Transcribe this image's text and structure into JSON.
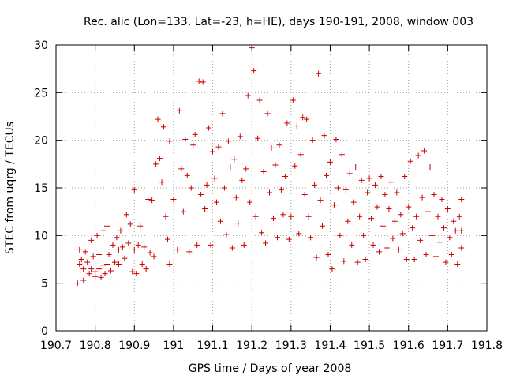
{
  "chart_data": {
    "type": "scatter",
    "title": "Rec. alic (Lon=133, Lat=-23, h=HE), days 190-191, 2008, window 003",
    "xlabel": "GPS time / Days of year 2008",
    "ylabel": "STEC from uqrg / TECUs",
    "xlim": [
      190.7,
      191.8
    ],
    "ylim": [
      0,
      30
    ],
    "xticks": [
      190.7,
      190.8,
      190.9,
      191.0,
      191.1,
      191.2,
      191.3,
      191.4,
      191.5,
      191.6,
      191.7,
      191.8
    ],
    "xtick_labels": [
      "190.7",
      "190.8",
      "190.9",
      "191",
      "191.1",
      "191.2",
      "191.3",
      "191.4",
      "191.5",
      "191.6",
      "191.7",
      "191.8"
    ],
    "yticks": [
      0,
      5,
      10,
      15,
      20,
      25,
      30
    ],
    "ytick_labels": [
      "0",
      "5",
      "10",
      "15",
      "20",
      "25",
      "30"
    ],
    "grid": true,
    "marker": "plus",
    "marker_color": "#cc0000",
    "series": [
      {
        "points": [
          [
            190.755,
            5.0
          ],
          [
            190.76,
            7.0
          ],
          [
            190.76,
            8.5
          ],
          [
            190.765,
            7.5
          ],
          [
            190.77,
            6.5
          ],
          [
            190.77,
            5.3
          ],
          [
            190.775,
            8.3
          ],
          [
            190.78,
            7.2
          ],
          [
            190.785,
            6.0
          ],
          [
            190.79,
            9.5
          ],
          [
            190.79,
            6.5
          ],
          [
            190.795,
            7.8
          ],
          [
            190.8,
            6.2
          ],
          [
            190.8,
            5.7
          ],
          [
            190.805,
            10.0
          ],
          [
            190.81,
            6.5
          ],
          [
            190.81,
            8.0
          ],
          [
            190.815,
            5.6
          ],
          [
            190.82,
            6.9
          ],
          [
            190.82,
            10.5
          ],
          [
            190.825,
            6.0
          ],
          [
            190.83,
            7.0
          ],
          [
            190.83,
            11.0
          ],
          [
            190.835,
            8.0
          ],
          [
            190.84,
            6.3
          ],
          [
            190.845,
            9.0
          ],
          [
            190.85,
            7.2
          ],
          [
            190.855,
            9.8
          ],
          [
            190.86,
            8.5
          ],
          [
            190.86,
            7.0
          ],
          [
            190.865,
            10.5
          ],
          [
            190.87,
            8.8
          ],
          [
            190.875,
            7.6
          ],
          [
            190.88,
            12.2
          ],
          [
            190.885,
            9.2
          ],
          [
            190.89,
            11.2
          ],
          [
            190.895,
            6.2
          ],
          [
            190.9,
            14.8
          ],
          [
            190.9,
            8.5
          ],
          [
            190.905,
            6.0
          ],
          [
            190.91,
            9.0
          ],
          [
            190.915,
            11.0
          ],
          [
            190.92,
            7.0
          ],
          [
            190.925,
            8.8
          ],
          [
            190.93,
            6.5
          ],
          [
            190.935,
            13.8
          ],
          [
            190.94,
            8.2
          ],
          [
            190.945,
            13.7
          ],
          [
            190.95,
            7.8
          ],
          [
            190.955,
            17.5
          ],
          [
            190.96,
            22.2
          ],
          [
            190.965,
            18.1
          ],
          [
            190.97,
            15.6
          ],
          [
            190.975,
            21.4
          ],
          [
            190.98,
            12.0
          ],
          [
            190.985,
            9.6
          ],
          [
            190.99,
            19.9
          ],
          [
            190.99,
            7.0
          ],
          [
            191.0,
            13.8
          ],
          [
            191.01,
            8.5
          ],
          [
            191.015,
            23.1
          ],
          [
            191.02,
            17.0
          ],
          [
            191.025,
            12.5
          ],
          [
            191.03,
            20.1
          ],
          [
            191.035,
            16.3
          ],
          [
            191.04,
            8.3
          ],
          [
            191.045,
            15.0
          ],
          [
            191.05,
            19.5
          ],
          [
            191.055,
            20.6
          ],
          [
            191.06,
            9.0
          ],
          [
            191.065,
            26.2
          ],
          [
            191.07,
            14.3
          ],
          [
            191.075,
            26.1
          ],
          [
            191.08,
            12.8
          ],
          [
            191.085,
            15.3
          ],
          [
            191.09,
            21.3
          ],
          [
            191.095,
            9.0
          ],
          [
            191.1,
            18.8
          ],
          [
            191.105,
            16.0
          ],
          [
            191.11,
            13.5
          ],
          [
            191.115,
            19.3
          ],
          [
            191.12,
            11.5
          ],
          [
            191.125,
            22.8
          ],
          [
            191.13,
            15.0
          ],
          [
            191.135,
            10.1
          ],
          [
            191.14,
            19.9
          ],
          [
            191.145,
            17.2
          ],
          [
            191.15,
            8.7
          ],
          [
            191.155,
            18.0
          ],
          [
            191.16,
            14.0
          ],
          [
            191.165,
            11.3
          ],
          [
            191.17,
            20.4
          ],
          [
            191.175,
            15.8
          ],
          [
            191.18,
            9.0
          ],
          [
            191.185,
            17.0
          ],
          [
            191.19,
            24.7
          ],
          [
            191.195,
            13.5
          ],
          [
            191.2,
            29.7
          ],
          [
            191.205,
            27.3
          ],
          [
            191.21,
            12.0
          ],
          [
            191.215,
            20.2
          ],
          [
            191.22,
            24.2
          ],
          [
            191.225,
            10.3
          ],
          [
            191.23,
            16.7
          ],
          [
            191.235,
            9.2
          ],
          [
            191.24,
            22.8
          ],
          [
            191.245,
            14.5
          ],
          [
            191.25,
            19.2
          ],
          [
            191.255,
            11.8
          ],
          [
            191.26,
            17.4
          ],
          [
            191.265,
            9.8
          ],
          [
            191.27,
            19.5
          ],
          [
            191.275,
            14.8
          ],
          [
            191.28,
            12.2
          ],
          [
            191.285,
            16.2
          ],
          [
            191.29,
            21.8
          ],
          [
            191.295,
            9.6
          ],
          [
            191.3,
            12.0
          ],
          [
            191.305,
            24.2
          ],
          [
            191.31,
            17.3
          ],
          [
            191.315,
            21.5
          ],
          [
            191.32,
            10.2
          ],
          [
            191.325,
            18.5
          ],
          [
            191.33,
            22.4
          ],
          [
            191.335,
            14.3
          ],
          [
            191.34,
            22.2
          ],
          [
            191.345,
            12.0
          ],
          [
            191.35,
            9.8
          ],
          [
            191.355,
            20.0
          ],
          [
            191.36,
            15.3
          ],
          [
            191.365,
            7.7
          ],
          [
            191.37,
            27.0
          ],
          [
            191.375,
            13.7
          ],
          [
            191.38,
            11.0
          ],
          [
            191.385,
            20.5
          ],
          [
            191.39,
            16.3
          ],
          [
            191.395,
            8.0
          ],
          [
            191.4,
            17.7
          ],
          [
            191.405,
            6.5
          ],
          [
            191.41,
            13.2
          ],
          [
            191.415,
            20.1
          ],
          [
            191.42,
            15.0
          ],
          [
            191.425,
            10.0
          ],
          [
            191.43,
            18.5
          ],
          [
            191.435,
            7.3
          ],
          [
            191.44,
            14.8
          ],
          [
            191.445,
            11.5
          ],
          [
            191.45,
            16.5
          ],
          [
            191.455,
            9.0
          ],
          [
            191.46,
            13.5
          ],
          [
            191.465,
            17.2
          ],
          [
            191.47,
            7.2
          ],
          [
            191.475,
            12.0
          ],
          [
            191.48,
            15.8
          ],
          [
            191.485,
            10.0
          ],
          [
            191.49,
            7.5
          ],
          [
            191.495,
            14.5
          ],
          [
            191.5,
            16.0
          ],
          [
            191.505,
            11.8
          ],
          [
            191.51,
            9.0
          ],
          [
            191.515,
            15.3
          ],
          [
            191.52,
            13.0
          ],
          [
            191.525,
            8.3
          ],
          [
            191.53,
            16.2
          ],
          [
            191.535,
            11.0
          ],
          [
            191.54,
            14.3
          ],
          [
            191.545,
            8.7
          ],
          [
            191.55,
            12.8
          ],
          [
            191.555,
            15.6
          ],
          [
            191.56,
            9.7
          ],
          [
            191.565,
            11.5
          ],
          [
            191.57,
            14.5
          ],
          [
            191.575,
            8.5
          ],
          [
            191.58,
            12.2
          ],
          [
            191.585,
            10.2
          ],
          [
            191.59,
            16.2
          ],
          [
            191.595,
            7.5
          ],
          [
            191.6,
            13.0
          ],
          [
            191.605,
            17.8
          ],
          [
            191.61,
            10.8
          ],
          [
            191.615,
            7.5
          ],
          [
            191.62,
            12.0
          ],
          [
            191.625,
            18.4
          ],
          [
            191.63,
            9.5
          ],
          [
            191.635,
            14.0
          ],
          [
            191.64,
            18.9
          ],
          [
            191.645,
            8.0
          ],
          [
            191.65,
            12.5
          ],
          [
            191.655,
            17.2
          ],
          [
            191.66,
            10.0
          ],
          [
            191.665,
            14.3
          ],
          [
            191.67,
            7.8
          ],
          [
            191.675,
            12.0
          ],
          [
            191.68,
            9.3
          ],
          [
            191.685,
            13.8
          ],
          [
            191.69,
            10.8
          ],
          [
            191.695,
            7.2
          ],
          [
            191.7,
            12.8
          ],
          [
            191.705,
            9.8
          ],
          [
            191.71,
            8.0
          ],
          [
            191.715,
            11.5
          ],
          [
            191.72,
            10.5
          ],
          [
            191.725,
            7.0
          ],
          [
            191.73,
            12.0
          ],
          [
            191.735,
            13.8
          ],
          [
            191.735,
            8.7
          ],
          [
            191.735,
            10.5
          ]
        ]
      }
    ]
  }
}
